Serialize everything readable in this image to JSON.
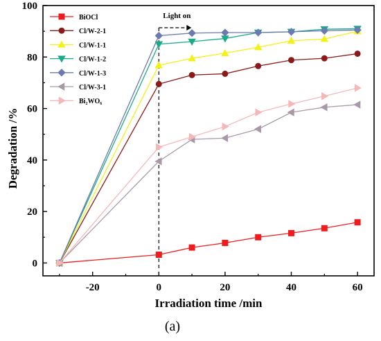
{
  "chart_data": {
    "type": "line",
    "xlabel": "Irradiation time /min",
    "ylabel": "Degradation /%",
    "xlim": [
      -35,
      65
    ],
    "ylim": [
      -5,
      100
    ],
    "xticks": [
      -20,
      0,
      20,
      40,
      60
    ],
    "yticks": [
      0,
      20,
      40,
      60,
      80,
      100
    ],
    "grid": false,
    "legend_position": "top-left",
    "annotation": {
      "text": "Light on",
      "x": 0
    },
    "caption": "(a)",
    "x": [
      -30,
      0,
      10,
      20,
      30,
      40,
      50,
      60
    ],
    "series": [
      {
        "name": "BiOCl",
        "color": "#ee1c1c",
        "marker": "square",
        "values": [
          0,
          3.2,
          6.0,
          7.8,
          10.0,
          11.6,
          13.5,
          15.8
        ]
      },
      {
        "name": "Cl/W-2-1",
        "color": "#8b1a1a",
        "marker": "circle",
        "values": [
          0,
          69.5,
          73.0,
          73.5,
          76.5,
          78.8,
          79.5,
          81.3
        ]
      },
      {
        "name": "Cl/W-1-1",
        "color": "#f2f21a",
        "marker": "triangle-up",
        "values": [
          0,
          76.8,
          79.5,
          81.5,
          83.8,
          86.3,
          87.0,
          90.0
        ]
      },
      {
        "name": "Cl/W-1-2",
        "color": "#1aaa8a",
        "marker": "triangle-down",
        "values": [
          0,
          85.0,
          86.0,
          87.2,
          89.5,
          89.8,
          90.8,
          91.0
        ]
      },
      {
        "name": "Cl/W-1-3",
        "color": "#6c7ab0",
        "marker": "diamond",
        "values": [
          0,
          88.3,
          89.3,
          89.5,
          89.5,
          89.8,
          90.2,
          90.5
        ]
      },
      {
        "name": "Cl/W-3-1",
        "color": "#a899a8",
        "marker": "triangle-left",
        "values": [
          0,
          39.5,
          48.0,
          48.5,
          52.0,
          58.5,
          60.5,
          61.5
        ]
      },
      {
        "name": "Bi₂WO₆",
        "color": "#f5b8b8",
        "marker": "triangle-right",
        "values": [
          0,
          45.0,
          49.0,
          53.0,
          58.5,
          61.8,
          64.8,
          68.0
        ]
      }
    ]
  }
}
